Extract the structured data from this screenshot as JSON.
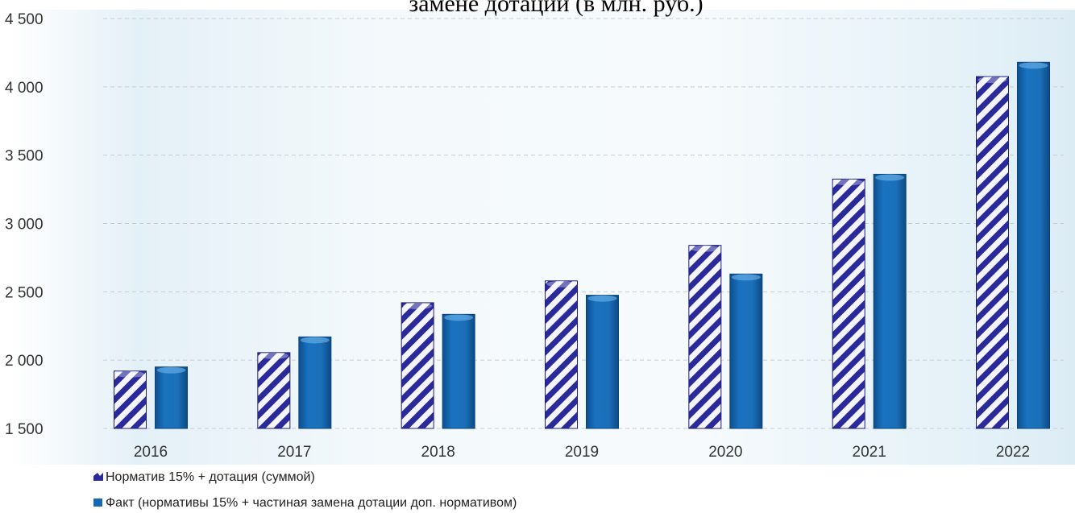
{
  "chart_data": {
    "type": "bar",
    "title": "замене дотации (в млн. руб.)",
    "categories": [
      "2016",
      "2017",
      "2018",
      "2019",
      "2020",
      "2021",
      "2022"
    ],
    "series": [
      {
        "name": "Норматив 15% + дотация (суммой)",
        "values": [
          1920,
          2055,
          2420,
          2580,
          2840,
          3325,
          4075
        ],
        "color": "#2a2a9a",
        "pattern": "diagonal-stripes"
      },
      {
        "name": "Факт (нормативы 15% + частиная замена дотации доп. нормативом)",
        "values": [
          1950,
          2170,
          2335,
          2475,
          2630,
          3360,
          4180
        ],
        "color": "#1667b4",
        "pattern": "solid"
      }
    ],
    "yticks": [
      "1 500",
      "2 000",
      "2 500",
      "3 000",
      "3 500",
      "4 000",
      "4 500"
    ],
    "ylim": [
      1500,
      4500
    ],
    "grid": true,
    "legend_position": "bottom-left"
  }
}
